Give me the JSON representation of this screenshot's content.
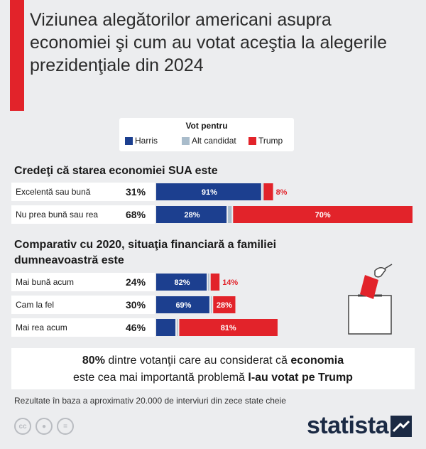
{
  "title": "Viziunea alegătorilor americani asupra economiei şi cum au votat aceştia la alegerile prezidenţiale din 2024",
  "legend": {
    "title": "Vot pentru",
    "items": [
      {
        "label": "Harris",
        "color": "#1c3f8f"
      },
      {
        "label": "Alt candidat",
        "color": "#a9bccb"
      },
      {
        "label": "Trump",
        "color": "#e2232a"
      }
    ]
  },
  "chart_data": [
    {
      "type": "bar",
      "title": "Credeţi că starea economiei SUA este",
      "categories": [
        "Excelentă sau bună",
        "Nu prea bună sau rea"
      ],
      "shares": [
        "31%",
        "68%"
      ],
      "series": [
        {
          "name": "Harris",
          "values": [
            91,
            28
          ],
          "labels": [
            "91%",
            "28%"
          ]
        },
        {
          "name": "Alt candidat",
          "values": [
            1,
            2
          ],
          "labels": [
            "",
            ""
          ]
        },
        {
          "name": "Trump",
          "values": [
            8,
            70
          ],
          "labels": [
            "8%",
            "70%"
          ]
        }
      ]
    },
    {
      "type": "bar",
      "title": "Comparativ cu 2020, situaţia financiară a familiei dumneavoastră este",
      "categories": [
        "Mai bună acum",
        "Cam la fel",
        "Mai rea acum"
      ],
      "shares": [
        "24%",
        "30%",
        "46%"
      ],
      "series": [
        {
          "name": "Harris",
          "values": [
            82,
            69,
            17
          ],
          "labels": [
            "82%",
            "69%",
            "17%"
          ]
        },
        {
          "name": "Alt candidat",
          "values": [
            4,
            3,
            2
          ],
          "labels": [
            "",
            "",
            ""
          ]
        },
        {
          "name": "Trump",
          "values": [
            14,
            28,
            81
          ],
          "labels": [
            "14%",
            "28%",
            "81%"
          ]
        }
      ]
    }
  ],
  "callout": {
    "part1": "80%",
    "part2": " dintre votanţii care au considerat că ",
    "part3": "economia",
    "part4": "este cea mai importantă problemă ",
    "part5": "l-au votat pe Trump"
  },
  "source": "Rezultate în baza a aproximativ 20.000 de interviuri din zece state cheie",
  "brand": "statista",
  "cc_icons": [
    "cc-icon",
    "by-icon",
    "nd-icon"
  ]
}
